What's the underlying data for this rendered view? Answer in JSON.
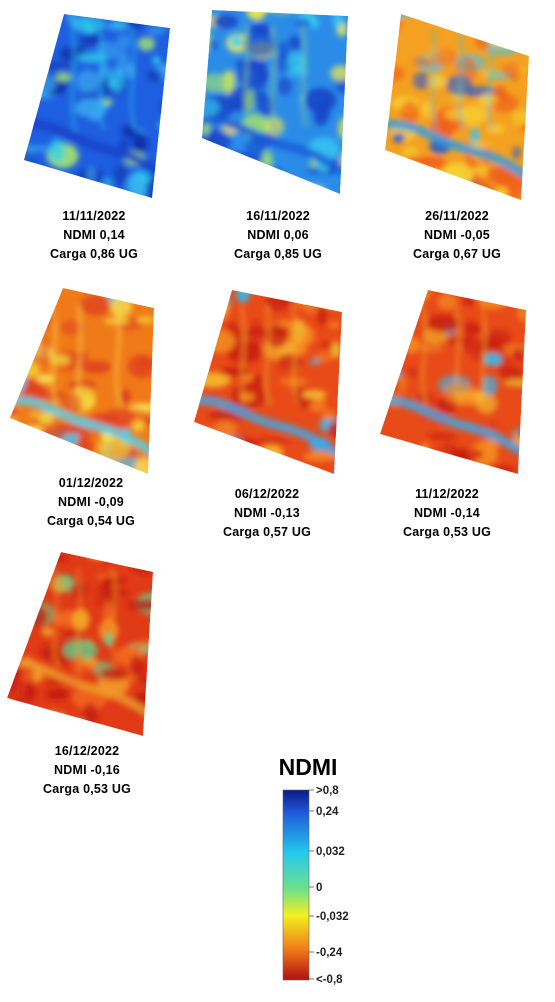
{
  "maps": [
    {
      "date": "11/11/2022",
      "ndmi": "NDMI 0,14",
      "carga": "Carga 0,86 UG",
      "palette": "blue"
    },
    {
      "date": "16/11/2022",
      "ndmi": "NDMI 0,06",
      "carga": "Carga 0,85 UG",
      "palette": "bluegreen"
    },
    {
      "date": "26/11/2022",
      "ndmi": "NDMI -0,05",
      "carga": "Carga 0,67 UG",
      "palette": "orange"
    },
    {
      "date": "01/12/2022",
      "ndmi": "NDMI -0,09",
      "carga": "Carga 0,54 UG",
      "palette": "yellow"
    },
    {
      "date": "06/12/2022",
      "ndmi": "NDMI -0,13",
      "carga": "Carga 0,57 UG",
      "palette": "red"
    },
    {
      "date": "11/12/2022",
      "ndmi": "NDMI -0,14",
      "carga": "Carga 0,53 UG",
      "palette": "red"
    },
    {
      "date": "16/12/2022",
      "ndmi": "NDMI -0,16",
      "carga": "Carga 0,53 UG",
      "palette": "deepred"
    }
  ],
  "legend": {
    "title": "NDMI",
    "ticks": [
      ">0,8",
      "0,24",
      "0,032",
      "0",
      "-0,032",
      "-0,24",
      "<-0,8"
    ],
    "colors": [
      "#0a1a8a",
      "#1f5ad8",
      "#25c8ee",
      "#6ee08a",
      "#f2f020",
      "#f07a18",
      "#b01010"
    ]
  }
}
